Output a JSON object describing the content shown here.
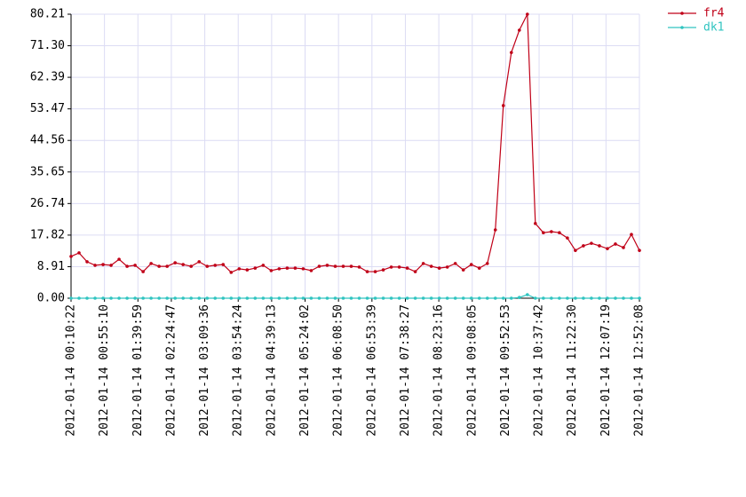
{
  "chart_data": {
    "type": "line",
    "x": [
      "2012-01-14 00:10:22",
      "2012-01-14 00:21:06",
      "2012-01-14 00:31:49",
      "2012-01-14 00:42:33",
      "2012-01-14 00:53:17",
      "2012-01-14 01:04:01",
      "2012-01-14 01:14:44",
      "2012-01-14 01:25:28",
      "2012-01-14 01:36:12",
      "2012-01-14 01:46:56",
      "2012-01-14 01:57:39",
      "2012-01-14 02:08:23",
      "2012-01-14 02:19:07",
      "2012-01-14 02:29:51",
      "2012-01-14 02:40:34",
      "2012-01-14 02:51:18",
      "2012-01-14 03:02:02",
      "2012-01-14 03:12:46",
      "2012-01-14 03:23:29",
      "2012-01-14 03:34:13",
      "2012-01-14 03:44:57",
      "2012-01-14 03:55:41",
      "2012-01-14 04:06:24",
      "2012-01-14 04:17:08",
      "2012-01-14 04:27:52",
      "2012-01-14 04:38:36",
      "2012-01-14 04:49:19",
      "2012-01-14 05:00:03",
      "2012-01-14 05:10:47",
      "2012-01-14 05:21:31",
      "2012-01-14 05:32:14",
      "2012-01-14 05:42:58",
      "2012-01-14 05:53:42",
      "2012-01-14 06:04:26",
      "2012-01-14 06:15:09",
      "2012-01-14 06:25:53",
      "2012-01-14 06:36:37",
      "2012-01-14 06:47:21",
      "2012-01-14 06:58:04",
      "2012-01-14 07:08:48",
      "2012-01-14 07:19:32",
      "2012-01-14 07:30:16",
      "2012-01-14 07:40:59",
      "2012-01-14 07:51:43",
      "2012-01-14 08:02:27",
      "2012-01-14 08:13:11",
      "2012-01-14 08:23:54",
      "2012-01-14 08:34:38",
      "2012-01-14 08:45:22",
      "2012-01-14 08:56:06",
      "2012-01-14 09:06:49",
      "2012-01-14 09:17:33",
      "2012-01-14 09:28:17",
      "2012-01-14 09:39:01",
      "2012-01-14 09:49:44",
      "2012-01-14 10:00:28",
      "2012-01-14 10:11:12",
      "2012-01-14 10:21:56",
      "2012-01-14 10:32:39",
      "2012-01-14 10:43:23",
      "2012-01-14 10:54:07",
      "2012-01-14 11:04:51",
      "2012-01-14 11:15:34",
      "2012-01-14 11:26:18",
      "2012-01-14 11:37:02",
      "2012-01-14 11:47:46",
      "2012-01-14 11:58:29",
      "2012-01-14 12:09:13",
      "2012-01-14 12:19:57",
      "2012-01-14 12:30:41",
      "2012-01-14 12:41:24",
      "2012-01-14 12:52:08"
    ],
    "series": [
      {
        "name": "fr4",
        "color": "#c00018",
        "values": [
          11.8,
          12.8,
          10.3,
          9.3,
          9.5,
          9.3,
          11.0,
          9.0,
          9.3,
          7.5,
          9.8,
          9.0,
          9.0,
          10.0,
          9.5,
          9.0,
          10.3,
          9.0,
          9.3,
          9.5,
          7.3,
          8.3,
          8.0,
          8.5,
          9.3,
          7.8,
          8.3,
          8.5,
          8.5,
          8.3,
          7.8,
          9.0,
          9.3,
          9.0,
          9.0,
          9.0,
          8.8,
          7.5,
          7.5,
          8.0,
          8.8,
          8.8,
          8.5,
          7.5,
          9.8,
          9.0,
          8.5,
          8.8,
          9.8,
          8.0,
          9.5,
          8.5,
          9.8,
          19.3,
          54.4,
          69.4,
          75.7,
          80.21,
          21.1,
          18.5,
          18.8,
          18.5,
          17.0,
          13.5,
          14.8,
          15.5,
          14.8,
          14.0,
          15.3,
          14.3,
          18.0,
          13.5
        ]
      },
      {
        "name": "dk1",
        "color": "#30c4c0",
        "values": [
          0,
          0,
          0,
          0,
          0,
          0,
          0,
          0,
          0,
          0,
          0,
          0,
          0,
          0,
          0,
          0,
          0,
          0,
          0,
          0,
          0,
          0,
          0,
          0,
          0,
          0,
          0,
          0,
          0,
          0,
          0,
          0,
          0,
          0,
          0,
          0,
          0,
          0,
          0,
          0,
          0,
          0,
          0,
          0,
          0,
          0,
          0,
          0,
          0,
          0,
          0,
          0,
          0,
          0,
          0,
          0,
          0.2,
          1.0,
          0,
          0,
          0,
          0,
          0,
          0,
          0,
          0,
          0,
          0,
          0,
          0,
          0,
          0
        ]
      }
    ],
    "xlim": [
      "2012-01-14 00:10:22",
      "2012-01-14 12:52:08"
    ],
    "xticks": [
      "2012-01-14 00:10:22",
      "2012-01-14 00:55:10",
      "2012-01-14 01:39:59",
      "2012-01-14 02:24:47",
      "2012-01-14 03:09:36",
      "2012-01-14 03:54:24",
      "2012-01-14 04:39:13",
      "2012-01-14 05:24:02",
      "2012-01-14 06:08:50",
      "2012-01-14 06:53:39",
      "2012-01-14 07:38:27",
      "2012-01-14 08:23:16",
      "2012-01-14 09:08:05",
      "2012-01-14 09:52:53",
      "2012-01-14 10:37:42",
      "2012-01-14 11:22:30",
      "2012-01-14 12:07:19",
      "2012-01-14 12:52:08"
    ],
    "ylim": [
      0,
      80.21
    ],
    "yticks": [
      {
        "value": 0,
        "label": "0.00"
      },
      8.91,
      17.82,
      26.74,
      35.65,
      44.56,
      53.47,
      62.39,
      {
        "value": 71.3,
        "label": "71.30"
      },
      80.21
    ],
    "grid": true,
    "legend": "top-right"
  }
}
